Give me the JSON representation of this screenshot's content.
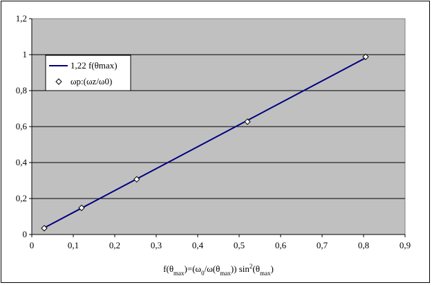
{
  "chart_data": {
    "type": "scatter",
    "xlabel": {
      "parts": [
        {
          "t": "f(θ",
          "s": "n"
        },
        {
          "t": "max",
          "s": "sub"
        },
        {
          "t": ")=(ω",
          "s": "n"
        },
        {
          "t": "0",
          "s": "sub"
        },
        {
          "t": "/ω(θ",
          "s": "n"
        },
        {
          "t": "max",
          "s": "sub"
        },
        {
          "t": ")) sin",
          "s": "n"
        },
        {
          "t": "2",
          "s": "sup"
        },
        {
          "t": "(θ",
          "s": "n"
        },
        {
          "t": "max",
          "s": "sub"
        },
        {
          "t": ")",
          "s": "n"
        }
      ]
    },
    "xlim": [
      0,
      0.9
    ],
    "ylim": [
      0,
      1.2
    ],
    "x_ticks": [
      "0",
      "0,1",
      "0,2",
      "0,3",
      "0,4",
      "0,5",
      "0,6",
      "0,7",
      "0,8",
      "0,9"
    ],
    "y_ticks": [
      "0",
      "0,2",
      "0,4",
      "0,6",
      "0,8",
      "1",
      "1,2"
    ],
    "grid": "horizontal",
    "legend_position": "top-left",
    "series": [
      {
        "name": "1,22 f(θmax)",
        "kind": "line",
        "color": "#000080",
        "x": [
          0.03,
          0.805
        ],
        "y": [
          0.037,
          0.982
        ]
      },
      {
        "name": "ωp:(ωz/ω0)",
        "kind": "marker",
        "marker": "diamond",
        "x": [
          0.03,
          0.12,
          0.253,
          0.52,
          0.805
        ],
        "y": [
          0.035,
          0.148,
          0.307,
          0.627,
          0.988
        ]
      }
    ],
    "plot_bg": "#c0c0c0"
  }
}
